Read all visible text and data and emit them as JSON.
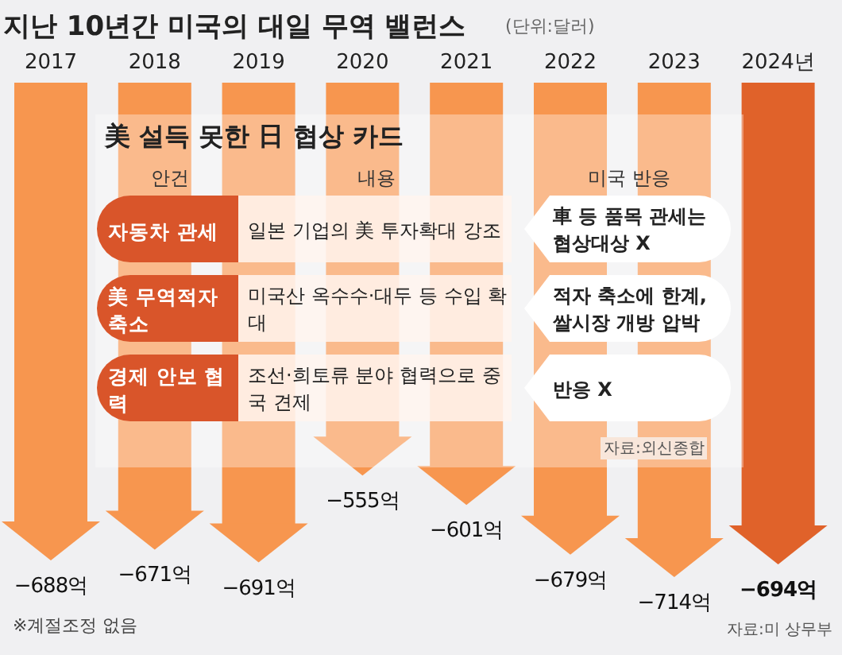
{
  "chart_data": {
    "type": "bar",
    "title": "지난 10년간 미국의 대일 무역 밸런스",
    "subtitle": "(단위:달러)",
    "categories": [
      "2017",
      "2018",
      "2019",
      "2020",
      "2021",
      "2022",
      "2023",
      "2024년"
    ],
    "values": [
      -688,
      -671,
      -691,
      -555,
      -601,
      -679,
      -714,
      -694
    ],
    "colors": [
      "#f7964f",
      "#f7964f",
      "#f7964f",
      "#f7964f",
      "#f7964f",
      "#f7964f",
      "#f7964f",
      "#e0622a"
    ],
    "value_labels": [
      "−688억",
      "−671억",
      "−691억",
      "−555억",
      "−601억",
      "−679억",
      "−714억",
      "−694억"
    ],
    "annotations": [
      "美 설득 못한 日 협상 카드",
      "안건",
      "내용",
      "미국 반응",
      "자동차 관세",
      "일본 기업의 美 투자확대 강조",
      "車 등 품목 관세는 협상대상 X",
      "美 무역적자 축소",
      "미국산 옥수수·대두 등 수입 확대",
      "적자 축소에 한계, 쌀시장 개방 압박",
      "경제 안보 협력",
      "조선·희토류 분야 협력으로 중국 견제",
      "반응 X",
      "자료:외신종합",
      "※계절조정 없음",
      "자료:미 상무부"
    ]
  }
}
